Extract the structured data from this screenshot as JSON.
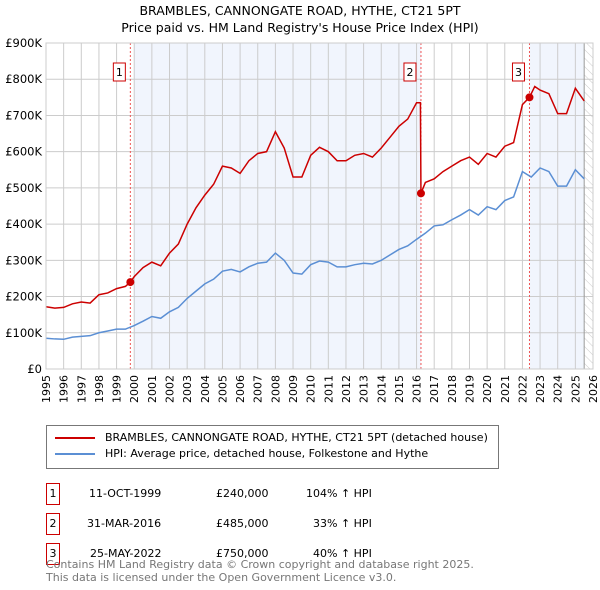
{
  "chart_data": {
    "type": "line",
    "title": "BRAMBLES, CANNONGATE ROAD, HYTHE, CT21 5PT",
    "subtitle": "Price paid vs. HM Land Registry's House Price Index (HPI)",
    "xlim": [
      1995,
      2026
    ],
    "ylim": [
      0,
      900000
    ],
    "x_ticks": [
      "1995",
      "1996",
      "1997",
      "1998",
      "1999",
      "2000",
      "2001",
      "2002",
      "2003",
      "2004",
      "2005",
      "2006",
      "2007",
      "2008",
      "2009",
      "2010",
      "2011",
      "2012",
      "2013",
      "2014",
      "2015",
      "2016",
      "2017",
      "2018",
      "2019",
      "2020",
      "2021",
      "2022",
      "2023",
      "2024",
      "2025",
      "2026"
    ],
    "y_ticks": [
      {
        "v": 0,
        "l": "£0"
      },
      {
        "v": 100000,
        "l": "£100K"
      },
      {
        "v": 200000,
        "l": "£200K"
      },
      {
        "v": 300000,
        "l": "£300K"
      },
      {
        "v": 400000,
        "l": "£400K"
      },
      {
        "v": 500000,
        "l": "£500K"
      },
      {
        "v": 600000,
        "l": "£600K"
      },
      {
        "v": 700000,
        "l": "£700K"
      },
      {
        "v": 800000,
        "l": "£800K"
      },
      {
        "v": 900000,
        "l": "£900K"
      }
    ],
    "grid": true,
    "series": [
      {
        "name": "BRAMBLES, CANNONGATE ROAD, HYTHE, CT21 5PT (detached house)",
        "color": "#cc0000",
        "x": [
          1995,
          1995.5,
          1996,
          1996.5,
          1997,
          1997.5,
          1998,
          1998.5,
          1999,
          1999.5,
          1999.78,
          2000,
          2000.5,
          2001,
          2001.5,
          2002,
          2002.5,
          2003,
          2003.5,
          2004,
          2004.5,
          2005,
          2005.5,
          2006,
          2006.5,
          2007,
          2007.5,
          2008,
          2008.5,
          2009,
          2009.5,
          2010,
          2010.5,
          2011,
          2011.5,
          2012,
          2012.5,
          2013,
          2013.5,
          2014,
          2014.5,
          2015,
          2015.5,
          2016,
          2016.22,
          2016.25,
          2016.5,
          2017,
          2017.5,
          2018,
          2018.5,
          2019,
          2019.5,
          2020,
          2020.5,
          2021,
          2021.5,
          2022,
          2022.4,
          2022.7,
          2023,
          2023.5,
          2024,
          2024.5,
          2025,
          2025.5
        ],
        "y": [
          172,
          168,
          170,
          180,
          185,
          182,
          205,
          210,
          222,
          228,
          240,
          255,
          280,
          295,
          285,
          320,
          345,
          400,
          445,
          480,
          510,
          560,
          555,
          540,
          575,
          595,
          600,
          655,
          610,
          530,
          530,
          590,
          612,
          600,
          575,
          575,
          590,
          595,
          585,
          610,
          640,
          670,
          690,
          735,
          735,
          485,
          515,
          525,
          545,
          560,
          575,
          585,
          565,
          595,
          585,
          615,
          625,
          730,
          750,
          780,
          770,
          760,
          705,
          705,
          775,
          740
        ]
      },
      {
        "name": "HPI: Average price, detached house, Folkestone and Hythe",
        "color": "#5b8fd4",
        "x": [
          1995,
          1995.5,
          1996,
          1996.5,
          1997,
          1997.5,
          1998,
          1998.5,
          1999,
          1999.5,
          2000,
          2000.5,
          2001,
          2001.5,
          2002,
          2002.5,
          2003,
          2003.5,
          2004,
          2004.5,
          2005,
          2005.5,
          2006,
          2006.5,
          2007,
          2007.5,
          2008,
          2008.5,
          2009,
          2009.5,
          2010,
          2010.5,
          2011,
          2011.5,
          2012,
          2012.5,
          2013,
          2013.5,
          2014,
          2014.5,
          2015,
          2015.5,
          2016,
          2016.5,
          2017,
          2017.5,
          2018,
          2018.5,
          2019,
          2019.5,
          2020,
          2020.5,
          2021,
          2021.5,
          2022,
          2022.5,
          2023,
          2023.5,
          2024,
          2024.5,
          2025,
          2025.5
        ],
        "y": [
          85,
          83,
          82,
          88,
          90,
          92,
          100,
          105,
          110,
          110,
          120,
          132,
          145,
          140,
          158,
          170,
          195,
          215,
          235,
          248,
          270,
          275,
          268,
          282,
          292,
          295,
          320,
          300,
          265,
          262,
          288,
          298,
          295,
          282,
          282,
          288,
          292,
          290,
          300,
          315,
          330,
          340,
          358,
          375,
          395,
          398,
          412,
          425,
          440,
          425,
          448,
          440,
          465,
          475,
          545,
          530,
          555,
          545,
          505,
          505,
          550,
          525
        ]
      }
    ],
    "y_unit": "thousands GBP",
    "sales": [
      {
        "id": "1",
        "x": 1999.78,
        "y": 240
      },
      {
        "id": "2",
        "x": 2016.25,
        "y": 485
      },
      {
        "id": "3",
        "x": 2022.4,
        "y": 750
      }
    ],
    "shaded": [
      [
        2000,
        2016.25
      ],
      [
        2022.4,
        2025.5
      ]
    ],
    "forecast_start": 2025.5
  },
  "legend": [
    "BRAMBLES, CANNONGATE ROAD, HYTHE, CT21 5PT (detached house)",
    "HPI: Average price, detached house, Folkestone and Hythe"
  ],
  "transactions": [
    {
      "num": "1",
      "date": "11-OCT-1999",
      "price": "£240,000",
      "hpi": "104% ↑ HPI"
    },
    {
      "num": "2",
      "date": "31-MAR-2016",
      "price": "£485,000",
      "hpi": "33% ↑ HPI"
    },
    {
      "num": "3",
      "date": "25-MAY-2022",
      "price": "£750,000",
      "hpi": "40% ↑ HPI"
    }
  ],
  "footer": [
    "Contains HM Land Registry data © Crown copyright and database right 2025.",
    "This data is licensed under the Open Government Licence v3.0."
  ]
}
